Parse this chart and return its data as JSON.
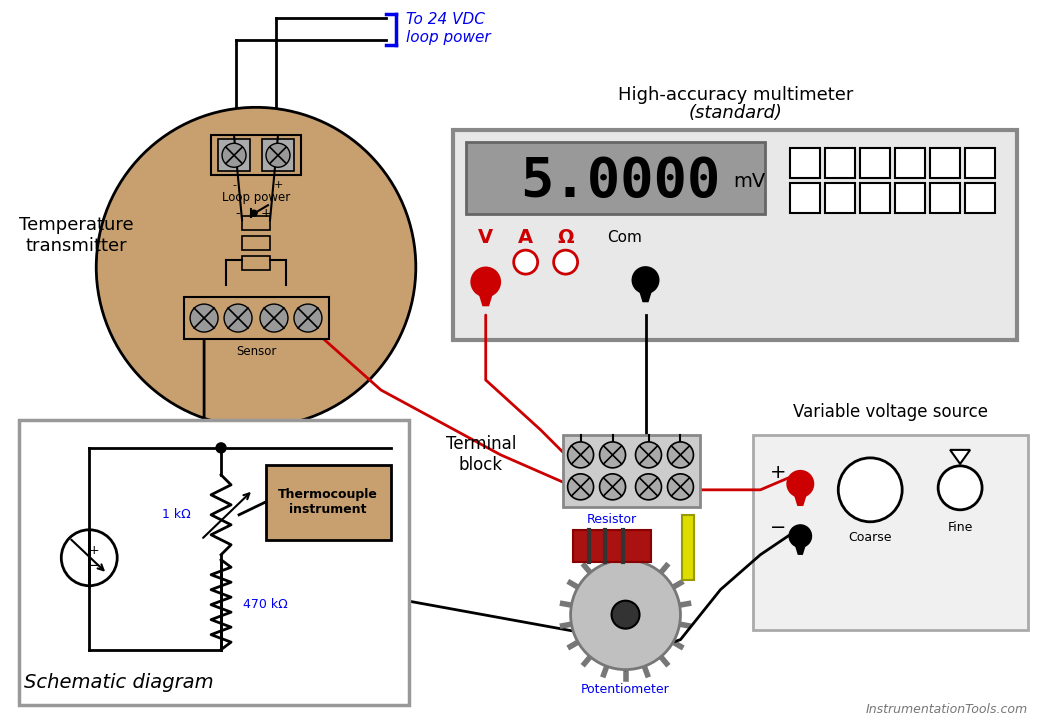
{
  "bg_color": "#ffffff",
  "blue_color": "#0000ee",
  "red_color": "#cc0000",
  "tan_color": "#c8a070",
  "gray_circle": "#888888",
  "display_value": "5.0000",
  "display_unit": "mV",
  "title_multimeter": "High-accuracy multimeter",
  "title_multimeter2": "(standard)",
  "title_transmitter": "Temperature\ntransmitter",
  "title_schematic": "Schematic diagram",
  "title_terminal": "Terminal\nblock",
  "title_variable": "Variable voltage source",
  "label_loop": "Loop power",
  "label_sensor": "Sensor",
  "label_resistor": "Resistor",
  "label_potentiometer": "Potentiometer",
  "label_470k": "470 kΩ",
  "label_1k": "1 kΩ",
  "label_thermocouple": "Thermocouple\ninstrument",
  "label_coarse": "Coarse",
  "label_fine": "Fine",
  "label_to24vdc": "To 24 VDC\nloop power",
  "label_watermark": "InstrumentationTools.com",
  "label_plus": "+",
  "label_minus": "−"
}
